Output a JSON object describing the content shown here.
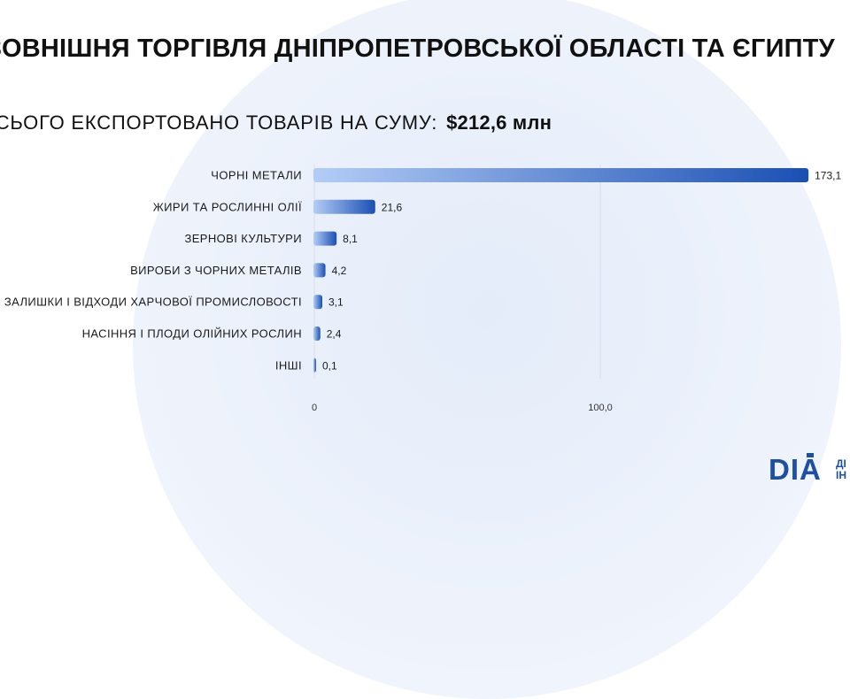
{
  "title": "ЗОВНІШНЯ ТОРГІВЛЯ ДНІПРОПЕТРОВСЬКОЇ ОБЛАСТІ ТА ЄГИПТУ",
  "subtitle": {
    "label": "ВСЬОГО ЕКСПОРТОВАНО ТОВАРІВ НА СУМУ:",
    "total": "$212,6 млн"
  },
  "logo": {
    "text": "DIA",
    "side_line1": "ДІ",
    "side_line2": "ІН"
  },
  "colors": {
    "bar_start": "#b3cdf6",
    "bar_end": "#1a4fb3",
    "gridline": "#d6dcea"
  },
  "chart_data": {
    "type": "bar",
    "orientation": "horizontal",
    "categories": [
      "ЧОРНІ МЕТАЛИ",
      "ЖИРИ ТА РОСЛИННІ ОЛІЇ",
      "ЗЕРНОВІ КУЛЬТУРИ",
      "ВИРОБИ З ЧОРНИХ МЕТАЛІВ",
      "ЗАЛИШКИ І ВІДХОДИ ХАРЧОВОЇ ПРОМИСЛОВОСТІ",
      "НАСІННЯ І ПЛОДИ ОЛІЙНИХ РОСЛИН",
      "ІНШІ"
    ],
    "values": [
      173.1,
      21.6,
      8.1,
      4.2,
      3.1,
      2.4,
      0.1
    ],
    "value_labels": [
      "173,1",
      "21,6",
      "8,1",
      "4,2",
      "3,1",
      "2,4",
      "0,1"
    ],
    "xlim": [
      0,
      200
    ],
    "ticks": [
      0,
      100
    ],
    "tick_labels": [
      "0",
      "100,0"
    ],
    "grid": true
  }
}
